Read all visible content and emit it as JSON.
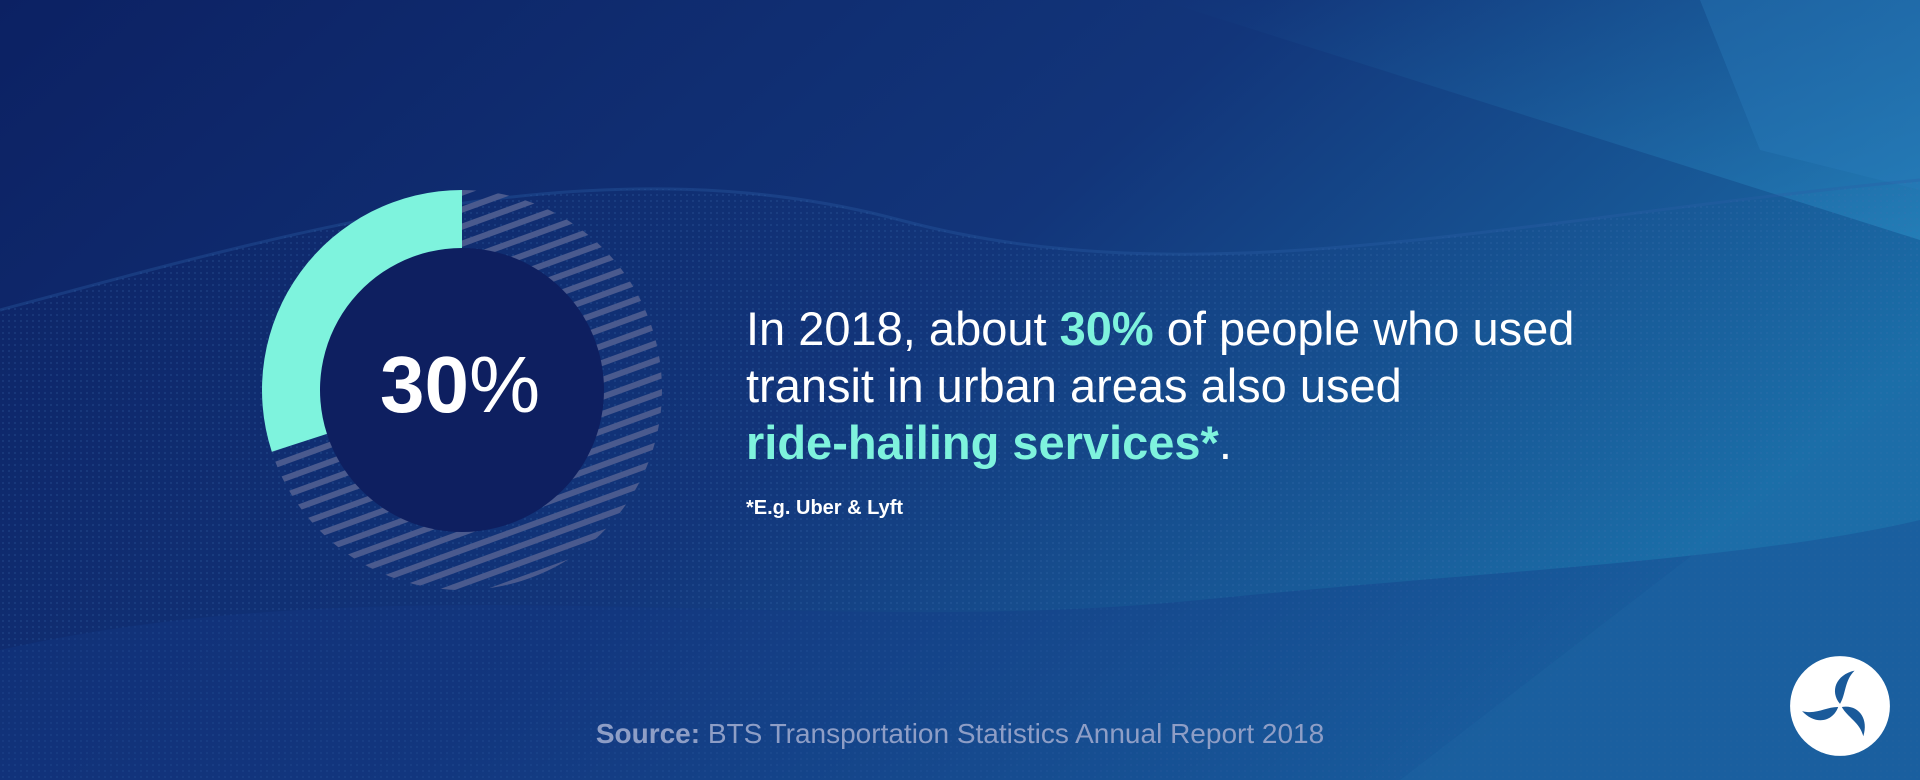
{
  "chart_data": {
    "type": "pie",
    "values": [
      30,
      70
    ],
    "value_number": "30",
    "value_symbol": "%"
  },
  "statement": {
    "part1": "In 2018, about ",
    "highlight1": "30%",
    "part2": " of people who used",
    "line2": "transit in urban areas also used",
    "highlight2": "ride-hailing services*",
    "end": "."
  },
  "footnote": "*E.g. Uber & Lyft",
  "source": {
    "label": "Source:",
    "text": " BTS Transportation Statistics Annual Report 2018"
  },
  "colors": {
    "background": "#0d2466",
    "accent": "#7ef3dd",
    "donut_center": "#0e1f60",
    "hatch": "#4a5a8e",
    "source_text": "#8e9ec6"
  },
  "icons": {
    "logo": "bts-triskelion-logo"
  }
}
